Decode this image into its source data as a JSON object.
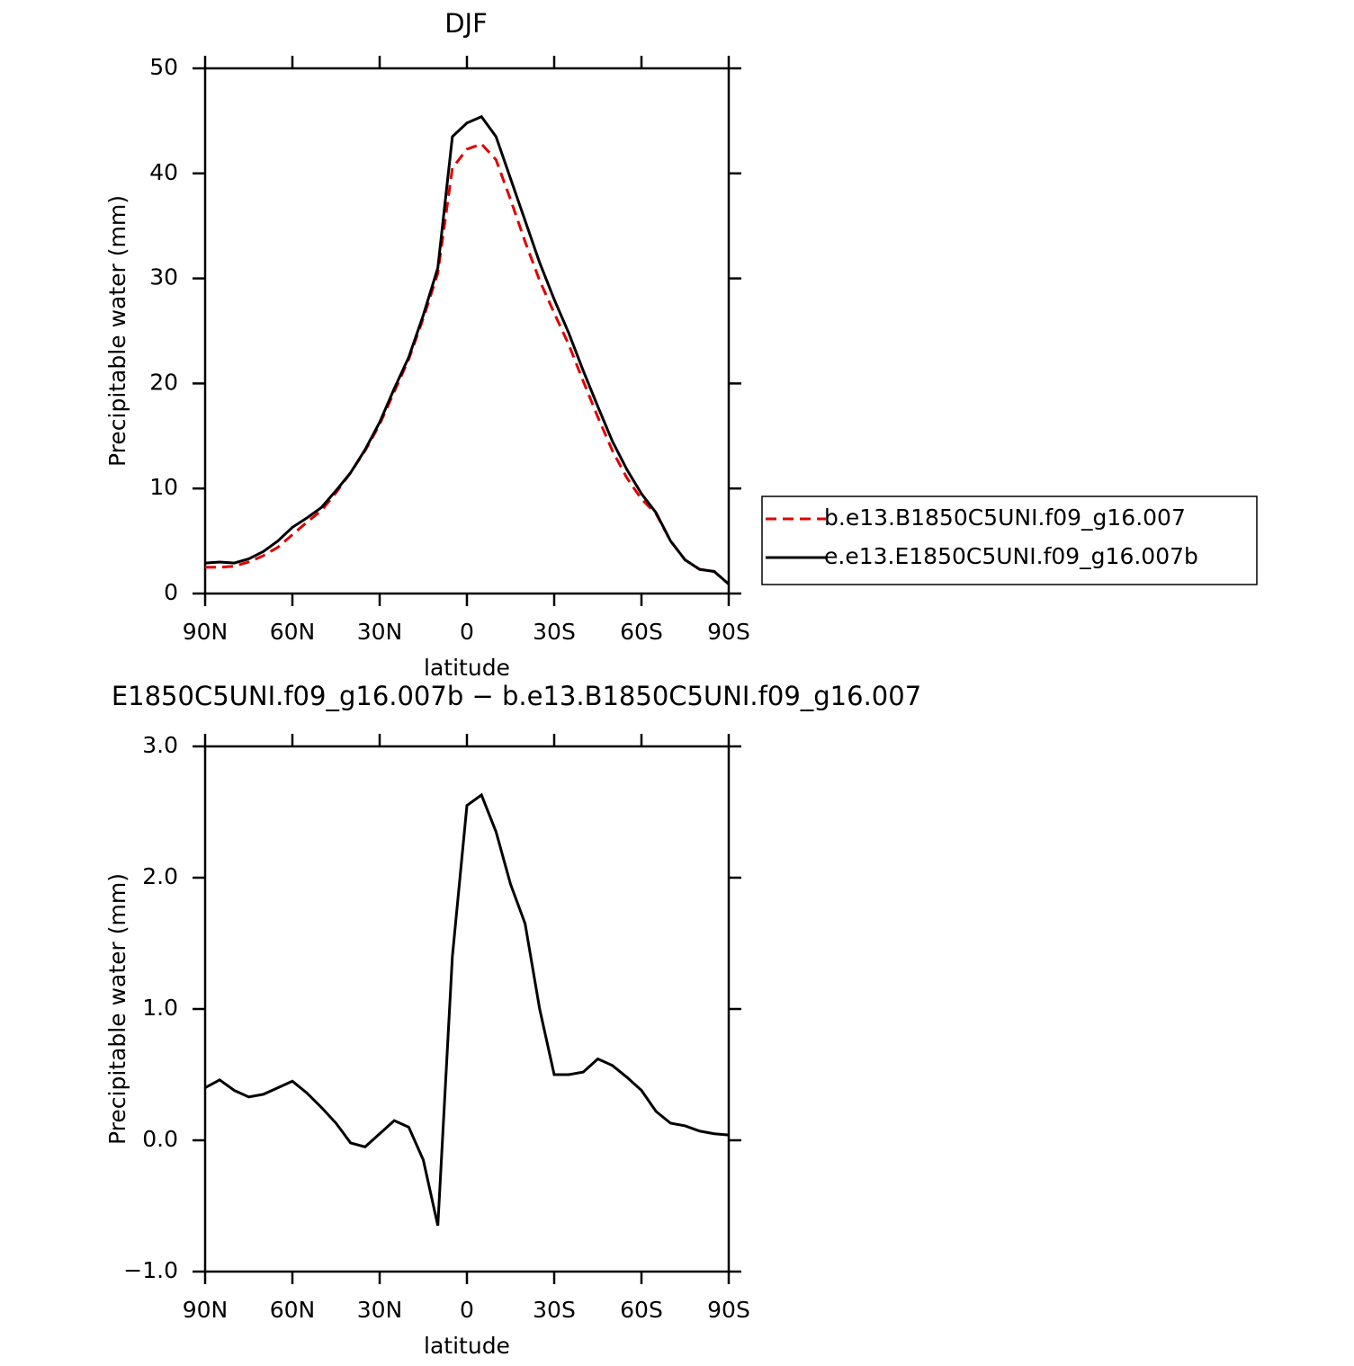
{
  "chart_data": [
    {
      "type": "line",
      "title": "DJF",
      "xlabel": "latitude",
      "ylabel": "Precipitable water (mm)",
      "x": [
        90,
        85,
        80,
        75,
        70,
        65,
        60,
        55,
        50,
        45,
        40,
        35,
        30,
        25,
        20,
        15,
        10,
        5,
        0,
        -5,
        -10,
        -15,
        -20,
        -25,
        -30,
        -35,
        -40,
        -45,
        -50,
        -55,
        -60,
        -65,
        -70,
        -75,
        -80,
        -85,
        -90
      ],
      "series": [
        {
          "name": "b.e13.B1850C5UNI.f09_g16.007",
          "color": "#e00000",
          "line_style": "dashed",
          "values": [
            2.5,
            2.5,
            2.6,
            3.0,
            3.6,
            4.4,
            5.6,
            6.8,
            7.9,
            9.6,
            11.5,
            13.6,
            16.1,
            19.2,
            22.3,
            26.2,
            30.5,
            40.5,
            42.3,
            42.8,
            41.3,
            37.5,
            33.5,
            29.8,
            26.7,
            23.7,
            20.2,
            16.8,
            13.6,
            11.0,
            9.0,
            7.6,
            5.0,
            3.2,
            2.3,
            2.1,
            0.9
          ]
        },
        {
          "name": "e.e13.E1850C5UNI.f09_g16.007b",
          "color": "#000000",
          "line_style": "solid",
          "values": [
            2.9,
            3.0,
            2.9,
            3.3,
            4.0,
            5.0,
            6.3,
            7.2,
            8.2,
            9.8,
            11.5,
            13.7,
            16.3,
            19.5,
            22.5,
            26.5,
            31.0,
            43.5,
            44.8,
            45.4,
            43.5,
            39.5,
            35.5,
            31.5,
            28.0,
            24.8,
            21.2,
            17.8,
            14.5,
            11.8,
            9.5,
            7.7,
            5.0,
            3.2,
            2.3,
            2.1,
            0.9
          ]
        }
      ],
      "xlim": [
        90,
        -90
      ],
      "xticks": [
        {
          "value": 90,
          "label": "90N"
        },
        {
          "value": 60,
          "label": "60N"
        },
        {
          "value": 30,
          "label": "30N"
        },
        0,
        {
          "value": -30,
          "label": "30S"
        },
        {
          "value": -60,
          "label": "60S"
        },
        {
          "value": -90,
          "label": "90S"
        }
      ],
      "ylim": [
        0,
        50
      ],
      "yticks": [
        0,
        10,
        20,
        30,
        40,
        50
      ],
      "legend": "right"
    },
    {
      "type": "line",
      "title": "E1850C5UNI.f09_g16.007b − b.e13.B1850C5UNI.f09_g16.007",
      "xlabel": "latitude",
      "ylabel": "Precipitable water (mm)",
      "x": [
        90,
        85,
        80,
        75,
        70,
        65,
        60,
        55,
        50,
        45,
        40,
        35,
        30,
        25,
        20,
        15,
        10,
        5,
        0,
        -5,
        -10,
        -15,
        -20,
        -25,
        -30,
        -35,
        -40,
        -45,
        -50,
        -55,
        -60,
        -65,
        -70,
        -75,
        -80,
        -85,
        -90
      ],
      "values": [
        0.4,
        0.46,
        0.38,
        0.33,
        0.35,
        0.4,
        0.45,
        0.36,
        0.25,
        0.13,
        -0.02,
        -0.05,
        0.05,
        0.15,
        0.1,
        -0.15,
        -0.65,
        1.4,
        2.55,
        2.63,
        2.35,
        1.95,
        1.65,
        1.0,
        0.5,
        0.5,
        0.52,
        0.62,
        0.57,
        0.48,
        0.38,
        0.22,
        0.13,
        0.11,
        0.07,
        0.05,
        0.04
      ],
      "color": "#000000",
      "xlim": [
        90,
        -90
      ],
      "xticks": [
        {
          "value": 90,
          "label": "90N"
        },
        {
          "value": 60,
          "label": "60N"
        },
        {
          "value": 30,
          "label": "30N"
        },
        0,
        {
          "value": -30,
          "label": "30S"
        },
        {
          "value": -60,
          "label": "60S"
        },
        {
          "value": -90,
          "label": "90S"
        }
      ],
      "ylim": [
        -1.0,
        3.0
      ],
      "yticks": [
        {
          "value": -1.0,
          "label": "−1.0"
        },
        {
          "value": 0.0,
          "label": "0.0"
        },
        {
          "value": 1.0,
          "label": "1.0"
        },
        {
          "value": 2.0,
          "label": "2.0"
        },
        {
          "value": 3.0,
          "label": "3.0"
        }
      ]
    }
  ]
}
